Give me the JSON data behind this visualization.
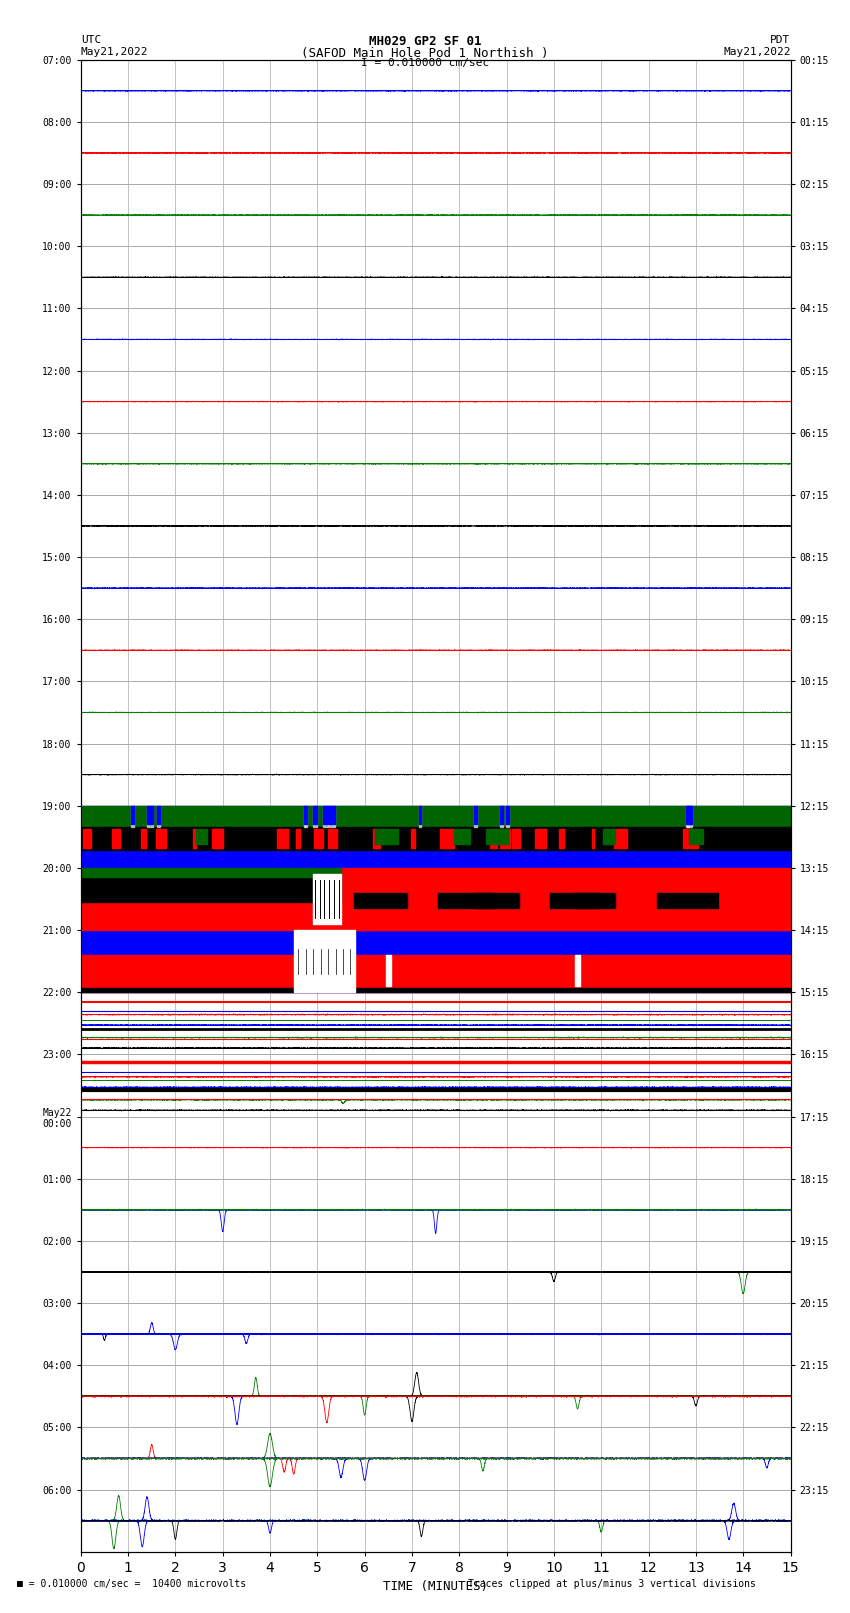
{
  "title_line1": "MH029 GP2 SF 01",
  "title_line2": "(SAFOD Main Hole Pod 1 Northish )",
  "title_line3": "I = 0.010000 cm/sec",
  "left_label_top": "UTC",
  "left_label_date": "May21,2022",
  "right_label_top": "PDT",
  "right_label_date": "May21,2022",
  "xlabel": "TIME (MINUTES)",
  "footer_left": "= 0.010000 cm/sec =  10400 microvolts",
  "footer_right": "Traces clipped at plus/minus 3 vertical divisions",
  "xlim": [
    0,
    15
  ],
  "xticks": [
    0,
    1,
    2,
    3,
    4,
    5,
    6,
    7,
    8,
    9,
    10,
    11,
    12,
    13,
    14,
    15
  ],
  "left_ytick_labels": [
    "07:00",
    "08:00",
    "09:00",
    "10:00",
    "11:00",
    "12:00",
    "13:00",
    "14:00",
    "15:00",
    "16:00",
    "17:00",
    "18:00",
    "19:00",
    "20:00",
    "21:00",
    "22:00",
    "23:00",
    "May22\n00:00",
    "01:00",
    "02:00",
    "03:00",
    "04:00",
    "05:00",
    "06:00"
  ],
  "right_ytick_labels": [
    "00:15",
    "01:15",
    "02:15",
    "03:15",
    "04:15",
    "05:15",
    "06:15",
    "07:15",
    "08:15",
    "09:15",
    "10:15",
    "11:15",
    "12:15",
    "13:15",
    "14:15",
    "15:15",
    "16:15",
    "17:15",
    "18:15",
    "19:15",
    "20:15",
    "21:15",
    "22:15",
    "23:15"
  ],
  "num_rows": 24,
  "bg_color": "white",
  "grid_color": "#aaaaaa"
}
